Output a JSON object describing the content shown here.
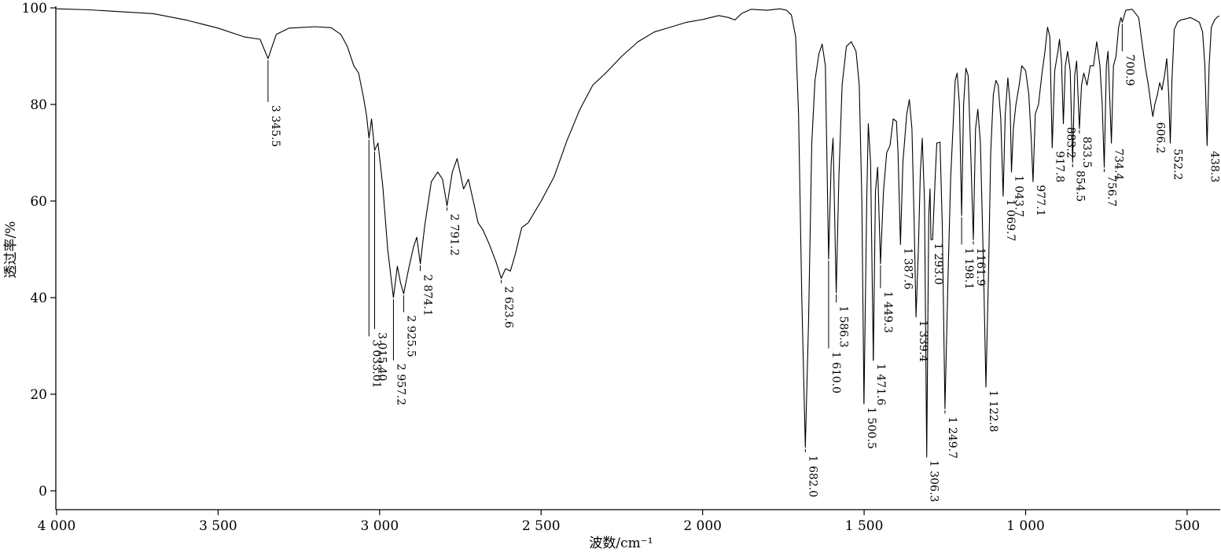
{
  "chart_data": {
    "type": "line",
    "title": "",
    "xlabel": "波数/cm⁻¹",
    "ylabel": "透过率/%",
    "xlim": [
      4000,
      400
    ],
    "ylim": [
      -4,
      100
    ],
    "x_reversed": true,
    "grid": false,
    "x_ticks": [
      4000,
      3500,
      3000,
      2500,
      2000,
      1500,
      1000,
      500
    ],
    "x_tick_labels": [
      "4 000",
      "3 500",
      "3 000",
      "2 500",
      "2 000",
      "1 500",
      "1 000",
      "500"
    ],
    "y_ticks": [
      0,
      20,
      40,
      60,
      80,
      100
    ],
    "y_tick_labels": [
      "0",
      "20",
      "40",
      "60",
      "80",
      "100"
    ],
    "series": [
      {
        "color": "#000000",
        "points": [
          [
            4000,
            99.8
          ],
          [
            3900,
            99.6
          ],
          [
            3800,
            99.2
          ],
          [
            3700,
            98.8
          ],
          [
            3600,
            97.5
          ],
          [
            3500,
            95.8
          ],
          [
            3420,
            94.0
          ],
          [
            3370,
            93.5
          ],
          [
            3345.5,
            89.5
          ],
          [
            3320,
            94.5
          ],
          [
            3280,
            95.8
          ],
          [
            3200,
            96.1
          ],
          [
            3150,
            95.9
          ],
          [
            3120,
            94.5
          ],
          [
            3100,
            92.0
          ],
          [
            3080,
            88.0
          ],
          [
            3065,
            86.5
          ],
          [
            3050,
            81.5
          ],
          [
            3040,
            77.5
          ],
          [
            3033.01,
            73.0
          ],
          [
            3025,
            77.0
          ],
          [
            3015.4,
            70.5
          ],
          [
            3005,
            72.0
          ],
          [
            2990,
            63.0
          ],
          [
            2975,
            50.0
          ],
          [
            2957.2,
            40.0
          ],
          [
            2945,
            46.5
          ],
          [
            2935,
            43.0
          ],
          [
            2925.5,
            40.8
          ],
          [
            2910,
            46.0
          ],
          [
            2895,
            50.5
          ],
          [
            2885,
            52.5
          ],
          [
            2874.1,
            47.0
          ],
          [
            2860,
            55.0
          ],
          [
            2840,
            64.0
          ],
          [
            2820,
            66.0
          ],
          [
            2805,
            64.5
          ],
          [
            2791.2,
            59.0
          ],
          [
            2775,
            66.0
          ],
          [
            2760,
            68.8
          ],
          [
            2740,
            62.5
          ],
          [
            2725,
            64.5
          ],
          [
            2710,
            60.0
          ],
          [
            2695,
            55.5
          ],
          [
            2680,
            54.0
          ],
          [
            2660,
            51.0
          ],
          [
            2640,
            47.5
          ],
          [
            2623.6,
            44.0
          ],
          [
            2610,
            46.0
          ],
          [
            2595,
            45.5
          ],
          [
            2580,
            49.0
          ],
          [
            2560,
            54.5
          ],
          [
            2540,
            55.5
          ],
          [
            2500,
            60.0
          ],
          [
            2460,
            65.0
          ],
          [
            2420,
            72.5
          ],
          [
            2380,
            79.0
          ],
          [
            2340,
            84.0
          ],
          [
            2300,
            86.5
          ],
          [
            2250,
            90.0
          ],
          [
            2200,
            93.0
          ],
          [
            2150,
            95.0
          ],
          [
            2100,
            96.0
          ],
          [
            2050,
            97.0
          ],
          [
            2000,
            97.6
          ],
          [
            1950,
            98.4
          ],
          [
            1920,
            98.0
          ],
          [
            1900,
            97.5
          ],
          [
            1880,
            98.8
          ],
          [
            1850,
            99.7
          ],
          [
            1800,
            99.5
          ],
          [
            1760,
            99.8
          ],
          [
            1740,
            99.5
          ],
          [
            1725,
            98.5
          ],
          [
            1712,
            94.0
          ],
          [
            1703,
            78.0
          ],
          [
            1693,
            40.0
          ],
          [
            1682.0,
            9.0
          ],
          [
            1672,
            35.0
          ],
          [
            1662,
            72.0
          ],
          [
            1652,
            85.0
          ],
          [
            1640,
            90.5
          ],
          [
            1630,
            92.5
          ],
          [
            1620,
            88.0
          ],
          [
            1610.0,
            48.0
          ],
          [
            1602,
            68.0
          ],
          [
            1596,
            73.0
          ],
          [
            1586.3,
            41.0
          ],
          [
            1578,
            65.0
          ],
          [
            1568,
            84.0
          ],
          [
            1555,
            92.0
          ],
          [
            1540,
            93.0
          ],
          [
            1525,
            91.0
          ],
          [
            1515,
            84.0
          ],
          [
            1507,
            60.0
          ],
          [
            1500.5,
            18.0
          ],
          [
            1492,
            60.0
          ],
          [
            1487,
            76.0
          ],
          [
            1480,
            68.0
          ],
          [
            1471.6,
            27.0
          ],
          [
            1465,
            62.0
          ],
          [
            1458,
            67.0
          ],
          [
            1449.3,
            47.0
          ],
          [
            1440,
            62.0
          ],
          [
            1430,
            70.0
          ],
          [
            1420,
            71.5
          ],
          [
            1410,
            77.0
          ],
          [
            1400,
            76.5
          ],
          [
            1395,
            70.0
          ],
          [
            1387.6,
            51.0
          ],
          [
            1380,
            68.0
          ],
          [
            1368,
            78.0
          ],
          [
            1360,
            81.0
          ],
          [
            1352,
            75.0
          ],
          [
            1345,
            55.0
          ],
          [
            1339.4,
            36.0
          ],
          [
            1332,
            50.0
          ],
          [
            1326,
            66.0
          ],
          [
            1320,
            73.0
          ],
          [
            1313,
            60.0
          ],
          [
            1306.3,
            7.0
          ],
          [
            1300,
            57.0
          ],
          [
            1296,
            62.5
          ],
          [
            1293.0,
            52.0
          ],
          [
            1288,
            52.0
          ],
          [
            1280,
            65.0
          ],
          [
            1275,
            72.0
          ],
          [
            1265,
            72.2
          ],
          [
            1258,
            55.0
          ],
          [
            1249.7,
            17.0
          ],
          [
            1240,
            45.0
          ],
          [
            1232,
            65.0
          ],
          [
            1225,
            75.0
          ],
          [
            1218,
            85.0
          ],
          [
            1212,
            86.5
          ],
          [
            1205,
            80.0
          ],
          [
            1198.1,
            57.0
          ],
          [
            1192,
            80.0
          ],
          [
            1185,
            87.5
          ],
          [
            1178,
            86.0
          ],
          [
            1170,
            70.0
          ],
          [
            1161.9,
            52.0
          ],
          [
            1155,
            75.0
          ],
          [
            1148,
            79.0
          ],
          [
            1140,
            72.0
          ],
          [
            1130,
            45.0
          ],
          [
            1122.8,
            21.5
          ],
          [
            1115,
            45.0
          ],
          [
            1108,
            70.0
          ],
          [
            1100,
            82.0
          ],
          [
            1092,
            85.0
          ],
          [
            1085,
            84.0
          ],
          [
            1077,
            77.0
          ],
          [
            1069.7,
            61.0
          ],
          [
            1063,
            78.0
          ],
          [
            1055,
            85.5
          ],
          [
            1048,
            80.0
          ],
          [
            1043.7,
            66.0
          ],
          [
            1038,
            75.0
          ],
          [
            1030,
            80.0
          ],
          [
            1020,
            84.0
          ],
          [
            1012,
            88.0
          ],
          [
            1000,
            87.0
          ],
          [
            990,
            82.0
          ],
          [
            982,
            72.0
          ],
          [
            977.1,
            64.0
          ],
          [
            970,
            78.0
          ],
          [
            960,
            80.0
          ],
          [
            950,
            86.0
          ],
          [
            940,
            91.0
          ],
          [
            932,
            96.0
          ],
          [
            925,
            94.0
          ],
          [
            917.8,
            71.0
          ],
          [
            910,
            87.0
          ],
          [
            900,
            91.0
          ],
          [
            895,
            93.5
          ],
          [
            889,
            89.0
          ],
          [
            883.2,
            76.0
          ],
          [
            877,
            88.0
          ],
          [
            870,
            91.0
          ],
          [
            862,
            87.0
          ],
          [
            854.5,
            68.0
          ],
          [
            848,
            86.0
          ],
          [
            842,
            89.0
          ],
          [
            833.5,
            75.0
          ],
          [
            827,
            84.0
          ],
          [
            820,
            86.5
          ],
          [
            810,
            84.0
          ],
          [
            800,
            88.0
          ],
          [
            790,
            88.0
          ],
          [
            780,
            93.0
          ],
          [
            770,
            88.0
          ],
          [
            763,
            80.0
          ],
          [
            756.7,
            67.0
          ],
          [
            750,
            88.0
          ],
          [
            745,
            91.0
          ],
          [
            734.4,
            72.0
          ],
          [
            728,
            88.0
          ],
          [
            720,
            90.0
          ],
          [
            712,
            96.0
          ],
          [
            705,
            98.0
          ],
          [
            700.9,
            97.0
          ],
          [
            690,
            99.5
          ],
          [
            670,
            99.7
          ],
          [
            650,
            98.0
          ],
          [
            640,
            93.0
          ],
          [
            630,
            88.0
          ],
          [
            620,
            84.0
          ],
          [
            612,
            80.0
          ],
          [
            606.2,
            77.5
          ],
          [
            600,
            80.0
          ],
          [
            592,
            82.0
          ],
          [
            585,
            84.5
          ],
          [
            578,
            83.0
          ],
          [
            570,
            86.0
          ],
          [
            563,
            89.5
          ],
          [
            557,
            82.0
          ],
          [
            552.2,
            72.0
          ],
          [
            547,
            85.0
          ],
          [
            540,
            95.5
          ],
          [
            530,
            97.0
          ],
          [
            520,
            97.5
          ],
          [
            505,
            97.7
          ],
          [
            490,
            98.0
          ],
          [
            475,
            97.5
          ],
          [
            462,
            97.0
          ],
          [
            452,
            95.0
          ],
          [
            445,
            88.0
          ],
          [
            438.3,
            71.5
          ],
          [
            432,
            88.0
          ],
          [
            425,
            96.0
          ],
          [
            415,
            97.5
          ],
          [
            405,
            98.2
          ],
          [
            400,
            98.3
          ]
        ]
      }
    ],
    "peak_labels": [
      {
        "x": 3345.5,
        "y": 89.5,
        "text": "3 345.5",
        "end_y": 80.5
      },
      {
        "x": 3033.01,
        "y": 73.0,
        "text": "3 033.01",
        "end_y": 32.0
      },
      {
        "x": 3015.4,
        "y": 70.5,
        "text": "3 015.40",
        "end_y": 33.5
      },
      {
        "x": 2957.2,
        "y": 40.0,
        "text": "2 957.2",
        "end_y": 27.0
      },
      {
        "x": 2925.5,
        "y": 40.8,
        "text": "2 925.5",
        "end_y": 37.0
      },
      {
        "x": 2874.1,
        "y": 47.0,
        "text": "2 874.1",
        "end_y": 45.5
      },
      {
        "x": 2791.2,
        "y": 59.0,
        "text": "2 791.2",
        "end_y": 58.0
      },
      {
        "x": 2623.6,
        "y": 44.0,
        "text": "2 623.6",
        "end_y": 43.0
      },
      {
        "x": 1682.0,
        "y": 9.0,
        "text": "1 682.0",
        "end_y": 8.0
      },
      {
        "x": 1610.0,
        "y": 48.0,
        "text": "1 610.0",
        "end_y": 29.5
      },
      {
        "x": 1586.3,
        "y": 41.0,
        "text": "1 586.3",
        "end_y": 39.0
      },
      {
        "x": 1500.5,
        "y": 18.0,
        "text": "1 500.5",
        "end_y": 24.0
      },
      {
        "x": 1471.6,
        "y": 27.0,
        "text": "1 471.6",
        "end_y": 32.0
      },
      {
        "x": 1449.3,
        "y": 47.0,
        "text": "1 449.3",
        "end_y": 42.0
      },
      {
        "x": 1387.6,
        "y": 51.0,
        "text": "1 387.6",
        "end_y": 51.0
      },
      {
        "x": 1339.4,
        "y": 36.0,
        "text": "1 339.4",
        "end_y": 36.0
      },
      {
        "x": 1306.3,
        "y": 7.0,
        "text": "1 306.3",
        "end_y": 7.0
      },
      {
        "x": 1293.0,
        "y": 52.0,
        "text": "1 293.0",
        "end_y": 52.0
      },
      {
        "x": 1249.7,
        "y": 17.0,
        "text": "1 249.7",
        "end_y": 16.0
      },
      {
        "x": 1198.1,
        "y": 57.0,
        "text": "1 198.1",
        "end_y": 51.0
      },
      {
        "x": 1161.9,
        "y": 52.0,
        "text": "1161.9",
        "end_y": 51.0
      },
      {
        "x": 1122.8,
        "y": 21.5,
        "text": "1 122.8",
        "end_y": 21.5
      },
      {
        "x": 1069.7,
        "y": 61.0,
        "text": "1 069.7",
        "end_y": 61.0
      },
      {
        "x": 1043.7,
        "y": 66.0,
        "text": "1 043.7",
        "end_y": 66.0
      },
      {
        "x": 977.1,
        "y": 64.0,
        "text": "977.1",
        "end_y": 64.0
      },
      {
        "x": 917.8,
        "y": 71.0,
        "text": "917.8",
        "end_y": 71.0
      },
      {
        "x": 883.2,
        "y": 76.0,
        "text": "883.2",
        "end_y": 76.0
      },
      {
        "x": 854.5,
        "y": 68.0,
        "text": "854.5",
        "end_y": 67.0
      },
      {
        "x": 833.5,
        "y": 75.0,
        "text": "833.5",
        "end_y": 74.0
      },
      {
        "x": 756.7,
        "y": 67.0,
        "text": "756.7",
        "end_y": 66.0
      },
      {
        "x": 734.4,
        "y": 72.0,
        "text": "734.4",
        "end_y": 71.5
      },
      {
        "x": 700.9,
        "y": 97.0,
        "text": "700.9",
        "end_y": 91.0
      },
      {
        "x": 606.2,
        "y": 77.5,
        "text": "606.2",
        "end_y": 77.0
      },
      {
        "x": 552.2,
        "y": 72.0,
        "text": "552.2",
        "end_y": 71.5
      },
      {
        "x": 438.3,
        "y": 71.5,
        "text": "438.3",
        "end_y": 71.0
      }
    ]
  }
}
